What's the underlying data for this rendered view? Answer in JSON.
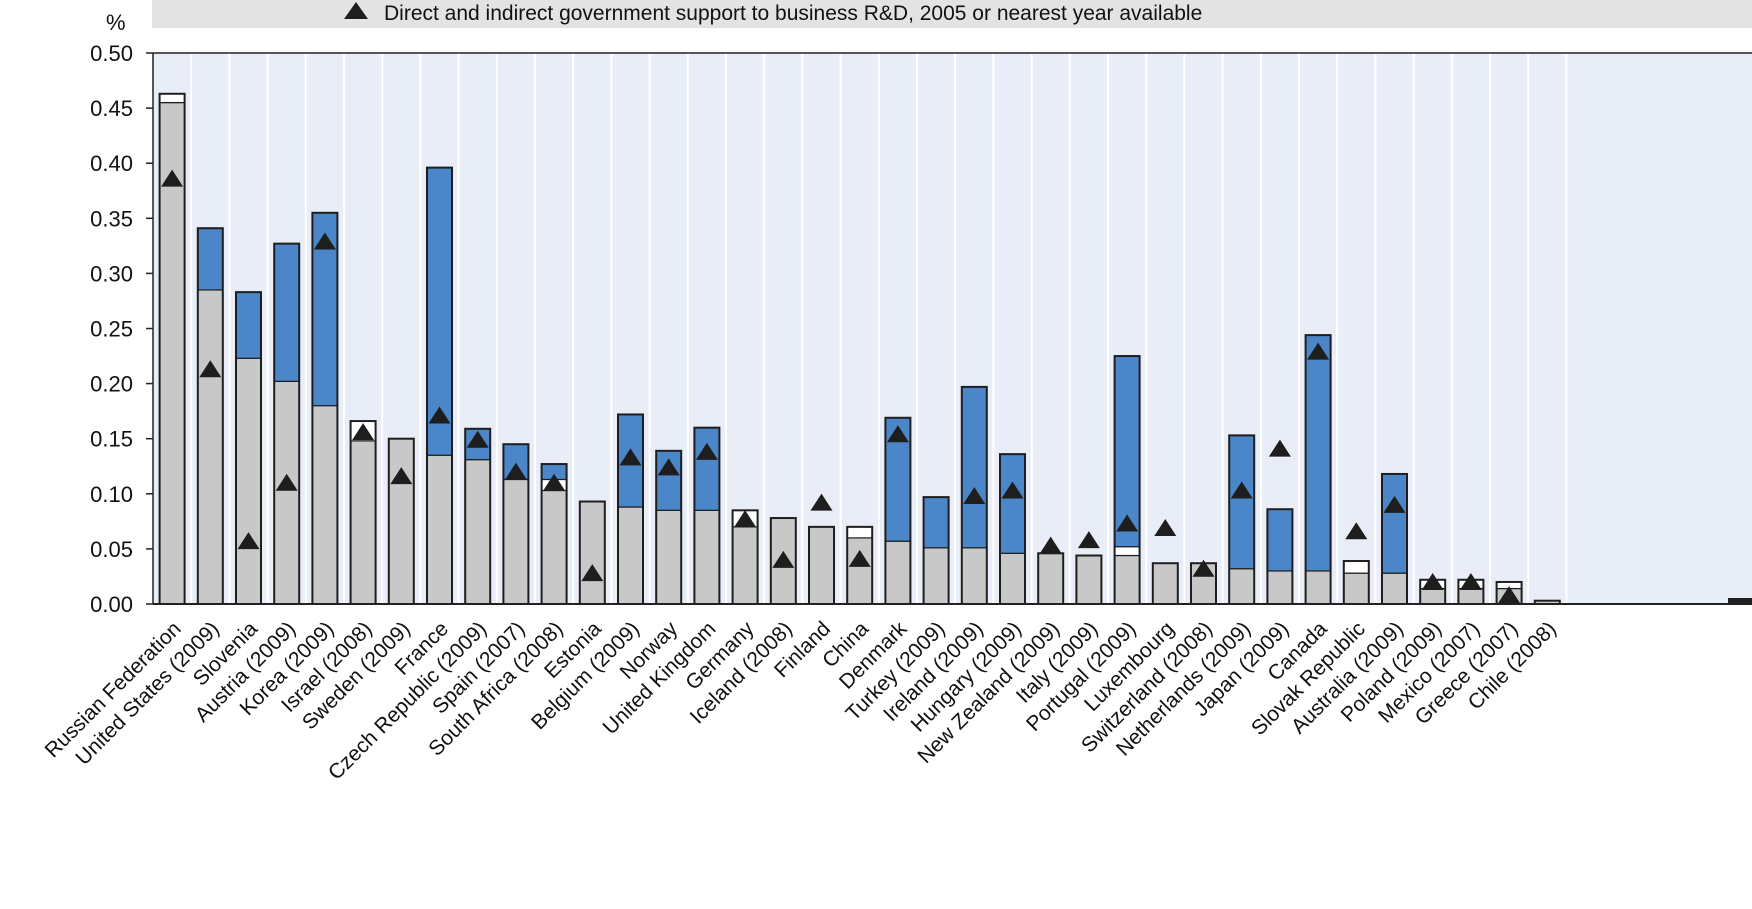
{
  "chart_data": {
    "type": "bar",
    "stacked": true,
    "ylabel": "%",
    "ylim": [
      0,
      0.5
    ],
    "yticks": [
      "0.00",
      "0.05",
      "0.10",
      "0.15",
      "0.20",
      "0.25",
      "0.30",
      "0.35",
      "0.40",
      "0.45",
      "0.50"
    ],
    "grid": "vertical",
    "legend": {
      "position": "top",
      "marker_label": "Direct and indirect government support to business R&D, 2005 or nearest year available"
    },
    "colors": {
      "gray": "#c8c8c8",
      "white": "#ffffff",
      "blue": "#4a86c8",
      "dark": "#1e1e1e",
      "plot_bg": "#e8edf7",
      "legend_bg": "#e3e3e3"
    },
    "categories": [
      "Russian Federation",
      "United States (2009)",
      "Slovenia",
      "Austria (2009)",
      "Korea (2009)",
      "Israel (2008)",
      "Sweden (2009)",
      "France",
      "Czech Republic (2009)",
      "Spain (2007)",
      "South Africa (2008)",
      "Estonia",
      "Belgium (2009)",
      "Norway",
      "United Kingdom",
      "Germany",
      "Iceland (2008)",
      "Finland",
      "China",
      "Denmark",
      "Turkey (2009)",
      "Ireland (2009)",
      "Hungary (2009)",
      "New Zealand (2009)",
      "Italy (2009)",
      "Portugal (2009)",
      "Luxembourg",
      "Switzerland (2008)",
      "Netherlands (2009)",
      "Japan (2009)",
      "Canada",
      "Slovak Republic",
      "Australia (2009)",
      "Poland (2009)",
      "Mexico (2007)",
      "Greece (2007)",
      "Chile (2008)"
    ],
    "series": [
      {
        "color": "gray",
        "values": [
          0.455,
          0.285,
          0.223,
          0.202,
          0.18,
          0.148,
          0.15,
          0.135,
          0.131,
          0.113,
          0.103,
          0.093,
          0.088,
          0.085,
          0.085,
          0.07,
          0.078,
          0.07,
          0.06,
          0.057,
          0.051,
          0.051,
          0.046,
          0.046,
          0.044,
          0.044,
          0.037,
          0.037,
          0.032,
          0.03,
          0.03,
          0.028,
          0.028,
          0.014,
          0.014,
          0.014,
          0.003
        ]
      },
      {
        "color": "white",
        "values": [
          0.008,
          0,
          0,
          0,
          0,
          0.018,
          0,
          0,
          0,
          0,
          0.01,
          0,
          0,
          0,
          0,
          0.015,
          0,
          0,
          0.01,
          0,
          0,
          0,
          0,
          0,
          0,
          0.008,
          0,
          0,
          0,
          0,
          0,
          0.011,
          0,
          0.008,
          0.008,
          0.006,
          0
        ]
      },
      {
        "color": "blue",
        "values": [
          0,
          0.056,
          0.06,
          0.125,
          0.175,
          0,
          0,
          0.261,
          0.028,
          0.032,
          0.014,
          0,
          0.084,
          0.054,
          0.075,
          0,
          0,
          0,
          0,
          0.112,
          0.046,
          0.146,
          0.09,
          0,
          0,
          0.173,
          0,
          0,
          0.121,
          0.056,
          0.214,
          0,
          0.09,
          0,
          0,
          0,
          0
        ]
      }
    ],
    "markers": [
      0.386,
      0.213,
      0.057,
      0.11,
      0.329,
      0.156,
      0.116,
      0.171,
      0.149,
      0.12,
      0.11,
      0.028,
      0.133,
      0.124,
      0.138,
      0.077,
      0.04,
      0.092,
      0.041,
      0.154,
      null,
      0.098,
      0.103,
      0.053,
      0.058,
      0.073,
      0.069,
      0.032,
      0.103,
      0.141,
      0.229,
      0.066,
      0.09,
      0.02,
      0.02,
      0.008,
      null
    ]
  }
}
